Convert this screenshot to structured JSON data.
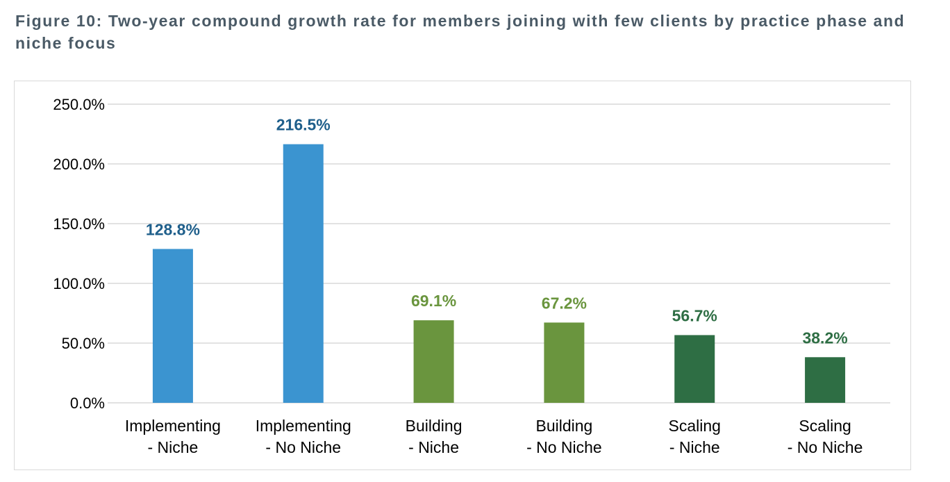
{
  "figure": {
    "title": "Figure 10: Two-year compound growth rate for members joining with few clients by practice phase and niche focus"
  },
  "colors": {
    "implementing": "#3b94d0",
    "building": "#6a953e",
    "scaling": "#2e6e44",
    "implementing_label": "#1f5f8b",
    "building_label": "#6a953e",
    "scaling_label": "#2e6e44",
    "gridline": "#d9d9d9",
    "title": "#4a5a66"
  },
  "chart_data": {
    "type": "bar",
    "title": "Figure 10: Two-year compound growth rate for members joining with few clients by practice phase and niche focus",
    "xlabel": "",
    "ylabel": "",
    "ylim": [
      0,
      250
    ],
    "yticks": [
      "0.0%",
      "50.0%",
      "100.0%",
      "150.0%",
      "200.0%",
      "250.0%"
    ],
    "ytick_values": [
      0,
      50,
      100,
      150,
      200,
      250
    ],
    "grid": true,
    "legend": "none",
    "categories": [
      [
        "Implementing",
        "- Niche"
      ],
      [
        "Implementing",
        "- No Niche"
      ],
      [
        "Building",
        "- Niche"
      ],
      [
        "Building",
        "- No Niche"
      ],
      [
        "Scaling",
        "- Niche"
      ],
      [
        "Scaling",
        "- No Niche"
      ]
    ],
    "values": [
      128.8,
      216.5,
      69.1,
      67.2,
      56.7,
      38.2
    ],
    "data_labels": [
      "128.8%",
      "216.5%",
      "69.1%",
      "67.2%",
      "56.7%",
      "38.2%"
    ],
    "groups": [
      "implementing",
      "implementing",
      "building",
      "building",
      "scaling",
      "scaling"
    ]
  }
}
